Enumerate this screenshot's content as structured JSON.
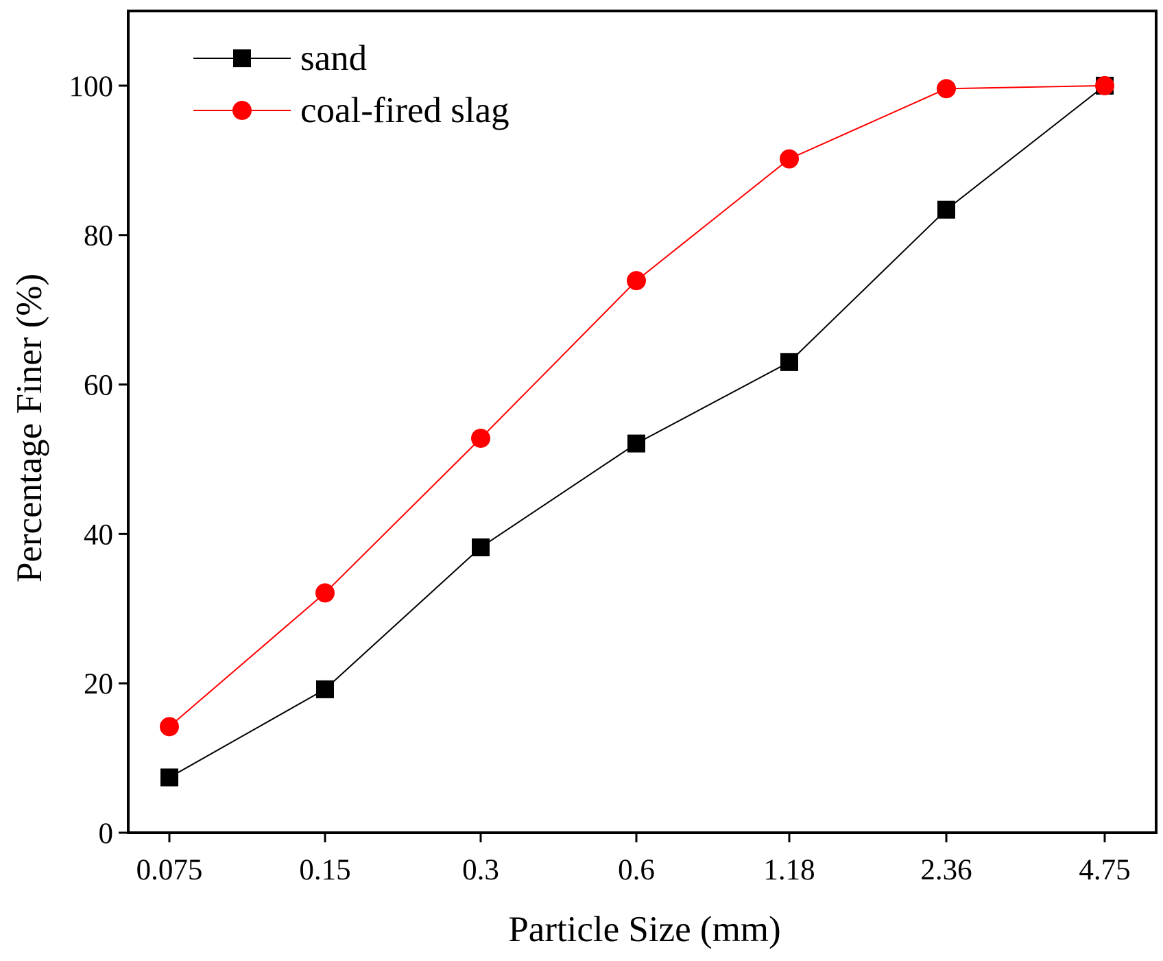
{
  "chart_data": {
    "type": "line",
    "title": "",
    "xlabel": "Particle Size (mm)",
    "ylabel": "Percentage Finer (%)",
    "categories": [
      "0.075",
      "0.15",
      "0.3",
      "0.6",
      "1.18",
      "2.36",
      "4.75"
    ],
    "ylim": [
      0,
      110
    ],
    "yticks": [
      0,
      20,
      40,
      60,
      80,
      100
    ],
    "grid": false,
    "legend_position": "top-left",
    "series": [
      {
        "name": "sand",
        "color": "#000000",
        "marker": "square",
        "values": [
          7.4,
          19.2,
          38.2,
          52.1,
          63.0,
          83.4,
          100.0
        ]
      },
      {
        "name": "coal-fired slag",
        "color": "#ff0000",
        "marker": "circle",
        "values": [
          14.2,
          32.1,
          52.8,
          73.9,
          90.2,
          99.6,
          100.0
        ]
      }
    ]
  }
}
